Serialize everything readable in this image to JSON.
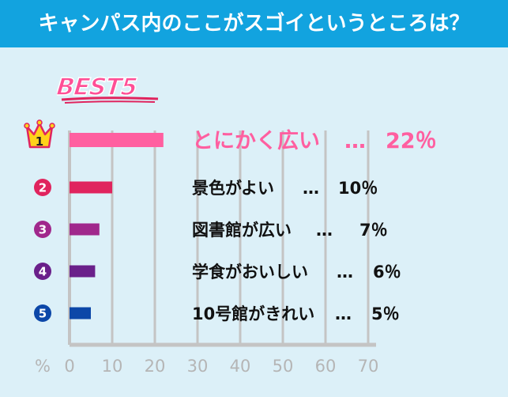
{
  "header": {
    "title": "キャンパス内のここがスゴイというところは？"
  },
  "badge": {
    "text": "BEST5"
  },
  "colors": {
    "header_bg": "#12a3df",
    "page_bg": "#dcf0f8",
    "axis": "#c4c4c4",
    "tick_text": "#b5b5b5",
    "rank_1": "#ff5fa0",
    "rank_2": "#e0245e",
    "rank_3": "#a0288c",
    "rank_4": "#6a208a",
    "rank_5": "#0c47a8",
    "crown": "#ffd21a"
  },
  "chart_data": {
    "type": "bar",
    "orientation": "horizontal",
    "title": "キャンパス内のここがスゴイというところは？",
    "ranks": [
      "1",
      "2",
      "3",
      "4",
      "5"
    ],
    "categories": [
      "とにかく広い",
      "景色がよい",
      "図書館が広い",
      "学食がおいしい",
      "10号館がきれい"
    ],
    "values": [
      22,
      10,
      7,
      6,
      5
    ],
    "value_labels": [
      "22％",
      "10％",
      "7％",
      "6％",
      "5％"
    ],
    "separator": "…",
    "xlabel": "%",
    "xlim": [
      0,
      70
    ],
    "xticks": [
      "0",
      "10",
      "20",
      "30",
      "40",
      "50",
      "60",
      "70"
    ],
    "grid": true
  }
}
